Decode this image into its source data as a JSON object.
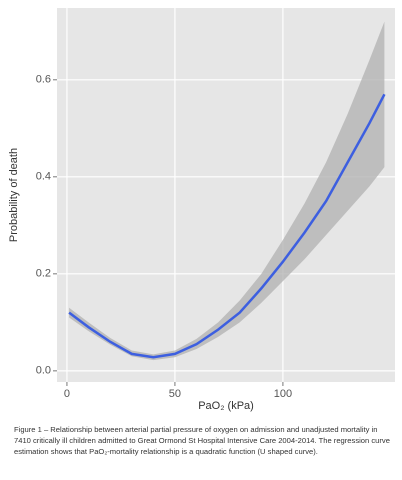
{
  "chart_data": {
    "type": "line",
    "x_label": "PaO₂ (kPa)",
    "y_label": "Probability of death",
    "caption": "Figure 1 – Relationship between arterial partial pressure of oxygen on admission and unadjusted mortality in 7410 critically ill children admitted to Great Ormond St Hospital Intensive Care 2004-2014.  The regression curve estimation shows that PaO₂-mortality relationship is a quadratic function (U shaped curve).",
    "x": [
      1,
      10,
      20,
      30,
      40,
      50,
      60,
      70,
      80,
      90,
      100,
      110,
      120,
      130,
      140,
      147
    ],
    "series": [
      {
        "color": "#3d5fe0",
        "values": [
          0.12,
          0.09,
          0.06,
          0.035,
          0.028,
          0.035,
          0.055,
          0.085,
          0.12,
          0.17,
          0.225,
          0.285,
          0.35,
          0.43,
          0.51,
          0.57
        ]
      }
    ],
    "band": {
      "color": "#b0b0b0",
      "upper": [
        0.13,
        0.1,
        0.068,
        0.042,
        0.034,
        0.042,
        0.066,
        0.1,
        0.145,
        0.2,
        0.27,
        0.345,
        0.43,
        0.53,
        0.64,
        0.72
      ],
      "lower": [
        0.11,
        0.082,
        0.054,
        0.03,
        0.022,
        0.028,
        0.045,
        0.07,
        0.1,
        0.14,
        0.185,
        0.23,
        0.28,
        0.33,
        0.38,
        0.42
      ]
    },
    "xlim": [
      -4.6,
      151.9
    ],
    "ylim": [
      -0.023,
      0.748
    ],
    "xticks": [
      0,
      50,
      100
    ],
    "yticks": [
      {
        "value": 0,
        "label": "0.0"
      },
      0.2,
      0.4,
      0.6
    ],
    "grid": true
  }
}
